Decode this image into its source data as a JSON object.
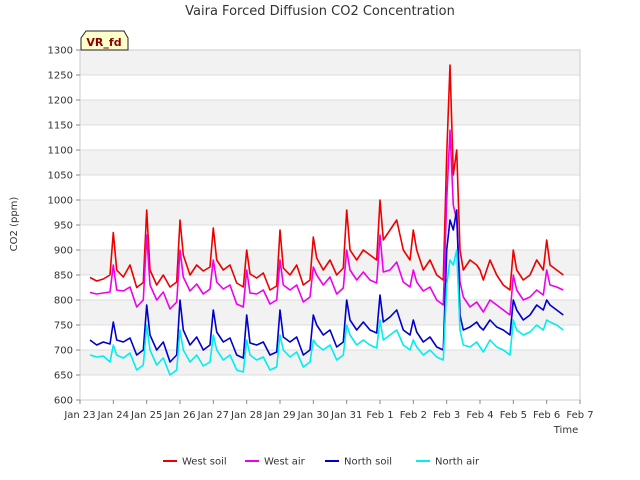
{
  "chart_data": {
    "type": "line",
    "title": "Vaira Forced Diffusion CO2 Concentration",
    "xlabel": "Time",
    "ylabel": "CO2 (ppm)",
    "badge": "VR_fd",
    "ylim": [
      600,
      1300
    ],
    "yticks": [
      600,
      650,
      700,
      750,
      800,
      850,
      900,
      950,
      1000,
      1050,
      1100,
      1150,
      1200,
      1250,
      1300
    ],
    "xlim": [
      0,
      15
    ],
    "xticks": [
      {
        "x": 0,
        "label": "Jan 23"
      },
      {
        "x": 1,
        "label": "Jan 24"
      },
      {
        "x": 2,
        "label": "Jan 25"
      },
      {
        "x": 3,
        "label": "Jan 26"
      },
      {
        "x": 4,
        "label": "Jan 27"
      },
      {
        "x": 5,
        "label": "Jan 28"
      },
      {
        "x": 6,
        "label": "Jan 29"
      },
      {
        "x": 7,
        "label": "Jan 30"
      },
      {
        "x": 8,
        "label": "Jan 31"
      },
      {
        "x": 9,
        "label": "Feb 1"
      },
      {
        "x": 10,
        "label": "Feb 2"
      },
      {
        "x": 11,
        "label": "Feb 3"
      },
      {
        "x": 12,
        "label": "Feb 4"
      },
      {
        "x": 13,
        "label": "Feb 5"
      },
      {
        "x": 14,
        "label": "Feb 6"
      },
      {
        "x": 15,
        "label": "Feb 7"
      }
    ],
    "grid": true,
    "legend_position": "bottom",
    "x": [
      0.3,
      0.5,
      0.7,
      0.9,
      1.0,
      1.1,
      1.3,
      1.5,
      1.7,
      1.9,
      2.0,
      2.1,
      2.3,
      2.5,
      2.7,
      2.9,
      3.0,
      3.1,
      3.3,
      3.5,
      3.7,
      3.9,
      4.0,
      4.1,
      4.3,
      4.5,
      4.7,
      4.9,
      5.0,
      5.1,
      5.3,
      5.5,
      5.7,
      5.9,
      6.0,
      6.1,
      6.3,
      6.5,
      6.7,
      6.9,
      7.0,
      7.1,
      7.3,
      7.5,
      7.7,
      7.9,
      8.0,
      8.1,
      8.3,
      8.5,
      8.7,
      8.9,
      9.0,
      9.1,
      9.3,
      9.5,
      9.7,
      9.9,
      10.0,
      10.1,
      10.3,
      10.5,
      10.7,
      10.9,
      11.0,
      11.1,
      11.2,
      11.3,
      11.4,
      11.5,
      11.7,
      11.9,
      12.0,
      12.1,
      12.3,
      12.5,
      12.7,
      12.9,
      13.0,
      13.1,
      13.3,
      13.5,
      13.7,
      13.9,
      14.0,
      14.1,
      14.3,
      14.5
    ],
    "series": [
      {
        "name": "West soil",
        "color": "#ee0000",
        "values": [
          845,
          838,
          842,
          850,
          935,
          860,
          846,
          870,
          825,
          835,
          980,
          860,
          830,
          850,
          826,
          836,
          960,
          890,
          850,
          870,
          858,
          866,
          944,
          880,
          860,
          870,
          834,
          826,
          900,
          852,
          844,
          854,
          820,
          828,
          940,
          864,
          850,
          870,
          830,
          840,
          926,
          884,
          860,
          880,
          850,
          864,
          980,
          900,
          880,
          900,
          890,
          880,
          1000,
          920,
          940,
          960,
          900,
          880,
          940,
          900,
          860,
          880,
          850,
          840,
          1090,
          1270,
          1050,
          1100,
          900,
          860,
          880,
          870,
          860,
          840,
          880,
          850,
          830,
          820,
          900,
          860,
          840,
          850,
          880,
          860,
          920,
          870,
          860,
          850
        ]
      },
      {
        "name": "West air",
        "color": "#ee00ee",
        "values": [
          815,
          812,
          814,
          816,
          870,
          820,
          818,
          826,
          786,
          800,
          930,
          830,
          800,
          816,
          782,
          796,
          900,
          846,
          818,
          832,
          812,
          822,
          880,
          836,
          822,
          830,
          792,
          786,
          860,
          814,
          812,
          820,
          792,
          800,
          880,
          830,
          820,
          830,
          796,
          806,
          866,
          850,
          830,
          846,
          812,
          824,
          900,
          860,
          840,
          856,
          840,
          834,
          930,
          856,
          860,
          876,
          836,
          826,
          860,
          836,
          818,
          826,
          800,
          790,
          1000,
          1140,
          990,
          960,
          836,
          806,
          786,
          796,
          786,
          776,
          800,
          790,
          780,
          770,
          850,
          820,
          800,
          806,
          820,
          810,
          860,
          830,
          826,
          820
        ]
      },
      {
        "name": "North soil",
        "color": "#0000cc",
        "values": [
          720,
          710,
          716,
          712,
          756,
          720,
          716,
          724,
          690,
          700,
          790,
          730,
          700,
          716,
          676,
          690,
          800,
          740,
          710,
          726,
          700,
          710,
          780,
          736,
          716,
          724,
          690,
          684,
          770,
          714,
          710,
          716,
          690,
          696,
          780,
          726,
          716,
          726,
          690,
          700,
          770,
          750,
          730,
          740,
          706,
          716,
          800,
          760,
          740,
          756,
          740,
          734,
          810,
          756,
          766,
          780,
          740,
          730,
          760,
          736,
          716,
          726,
          706,
          700,
          900,
          960,
          940,
          980,
          770,
          740,
          746,
          756,
          746,
          740,
          760,
          746,
          740,
          730,
          800,
          780,
          760,
          770,
          790,
          780,
          800,
          790,
          780,
          770
        ]
      },
      {
        "name": "North air",
        "color": "#00eeee",
        "values": [
          690,
          686,
          688,
          676,
          710,
          690,
          684,
          694,
          660,
          670,
          750,
          700,
          670,
          684,
          650,
          660,
          740,
          700,
          676,
          690,
          668,
          676,
          730,
          700,
          680,
          690,
          660,
          656,
          720,
          690,
          680,
          686,
          660,
          666,
          730,
          700,
          686,
          696,
          666,
          676,
          720,
          710,
          700,
          710,
          680,
          690,
          750,
          730,
          710,
          720,
          710,
          704,
          760,
          720,
          730,
          740,
          710,
          700,
          720,
          706,
          690,
          700,
          686,
          680,
          830,
          880,
          870,
          900,
          740,
          710,
          706,
          716,
          706,
          696,
          720,
          706,
          700,
          690,
          760,
          740,
          730,
          736,
          750,
          740,
          760,
          756,
          750,
          740
        ]
      }
    ]
  }
}
